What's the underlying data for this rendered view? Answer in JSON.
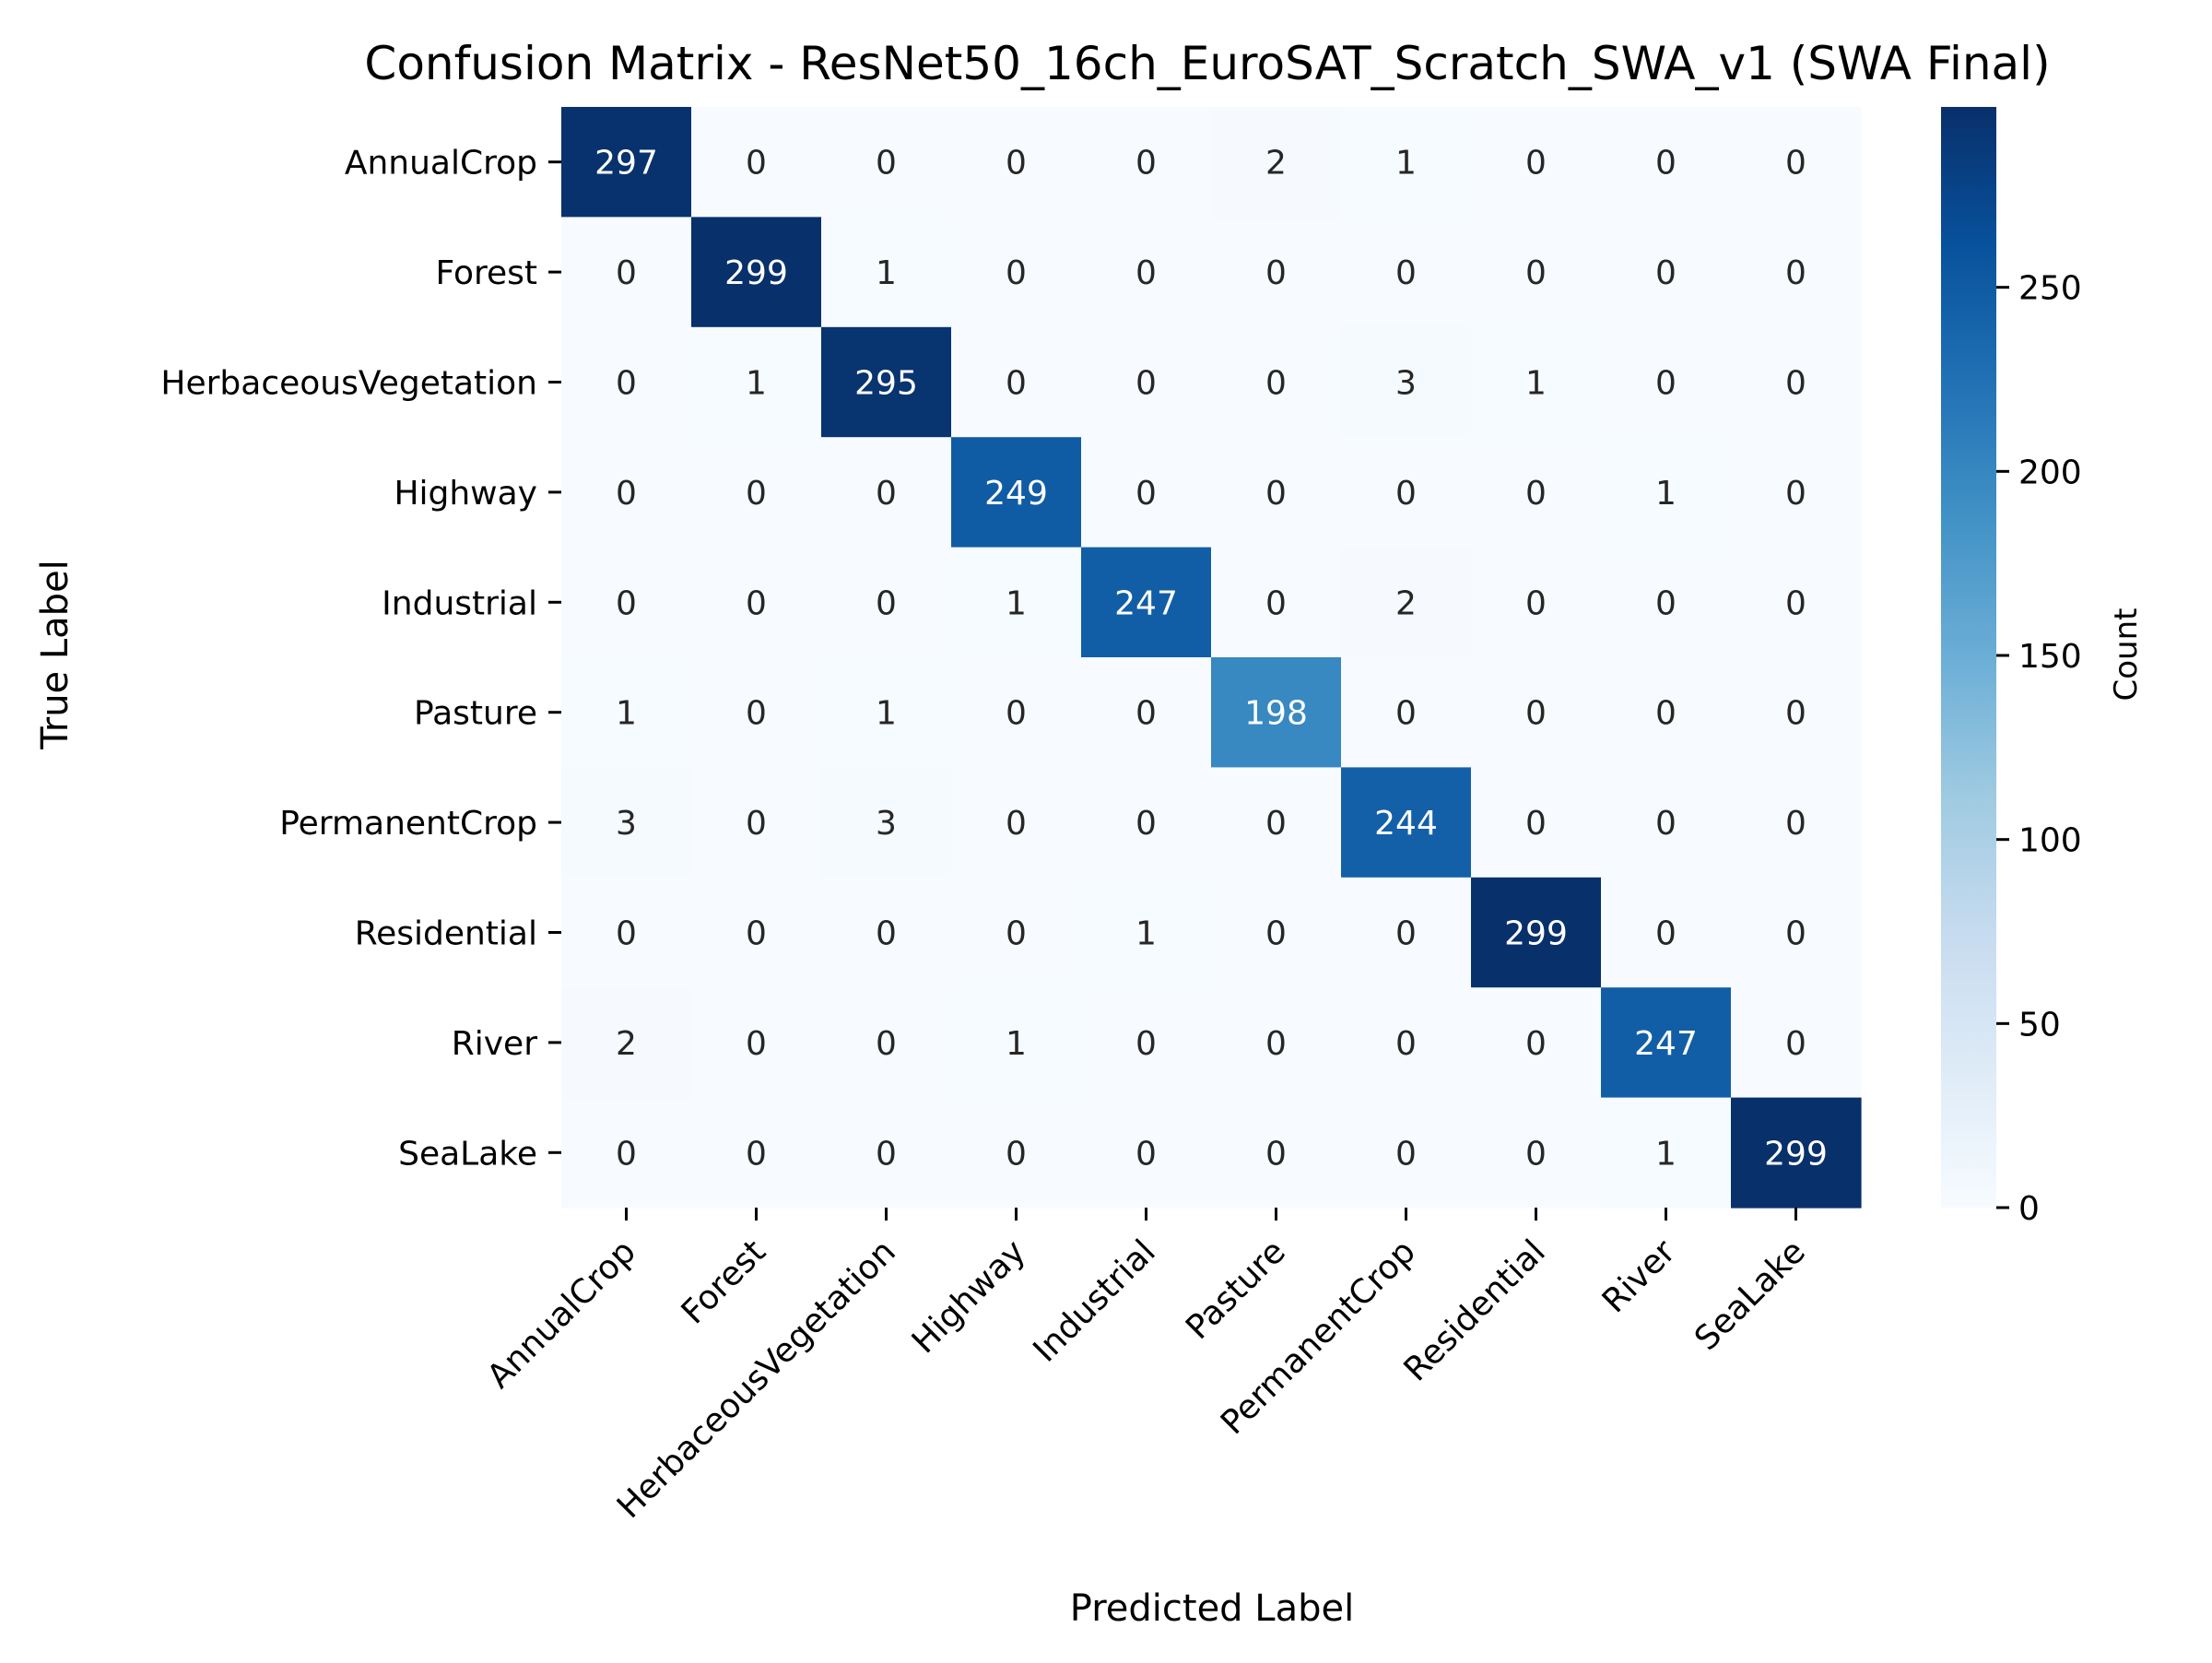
{
  "chart_data": {
    "type": "heatmap",
    "title": "Confusion Matrix - ResNet50_16ch_EuroSAT_Scratch_SWA_v1 (SWA Final)",
    "xlabel": "Predicted Label",
    "ylabel": "True Label",
    "colorbar_label": "Count",
    "colormap": "Blues",
    "color_range": [
      0,
      299
    ],
    "colorbar_ticks": [
      0,
      50,
      100,
      150,
      200,
      250
    ],
    "row_labels": [
      "AnnualCrop",
      "Forest",
      "HerbaceousVegetation",
      "Highway",
      "Industrial",
      "Pasture",
      "PermanentCrop",
      "Residential",
      "River",
      "SeaLake"
    ],
    "col_labels": [
      "AnnualCrop",
      "Forest",
      "HerbaceousVegetation",
      "Highway",
      "Industrial",
      "Pasture",
      "PermanentCrop",
      "Residential",
      "River",
      "SeaLake"
    ],
    "values": [
      [
        297,
        0,
        0,
        0,
        0,
        2,
        1,
        0,
        0,
        0
      ],
      [
        0,
        299,
        1,
        0,
        0,
        0,
        0,
        0,
        0,
        0
      ],
      [
        0,
        1,
        295,
        0,
        0,
        0,
        3,
        1,
        0,
        0
      ],
      [
        0,
        0,
        0,
        249,
        0,
        0,
        0,
        0,
        1,
        0
      ],
      [
        0,
        0,
        0,
        1,
        247,
        0,
        2,
        0,
        0,
        0
      ],
      [
        1,
        0,
        1,
        0,
        0,
        198,
        0,
        0,
        0,
        0
      ],
      [
        3,
        0,
        3,
        0,
        0,
        0,
        244,
        0,
        0,
        0
      ],
      [
        0,
        0,
        0,
        0,
        1,
        0,
        0,
        299,
        0,
        0
      ],
      [
        2,
        0,
        0,
        1,
        0,
        0,
        0,
        0,
        247,
        0
      ],
      [
        0,
        0,
        0,
        0,
        0,
        0,
        0,
        0,
        1,
        299
      ]
    ]
  }
}
